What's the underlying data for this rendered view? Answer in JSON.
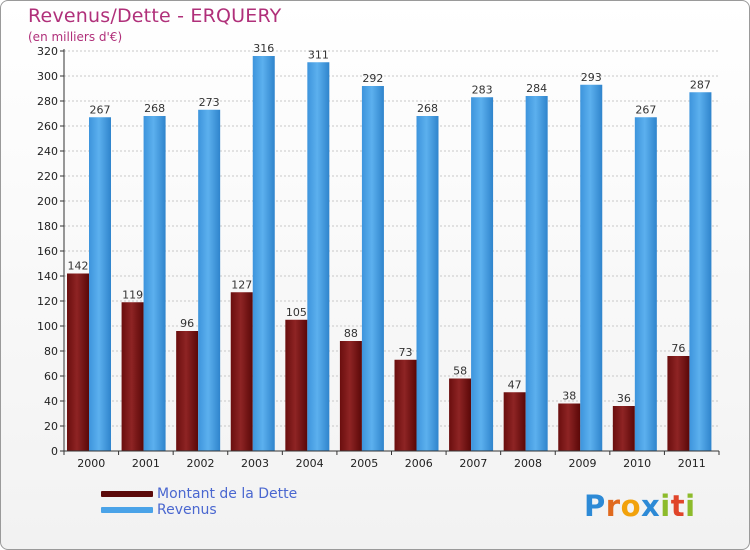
{
  "header": {
    "title": "Revenus/Dette - ERQUERY",
    "subtitle": "(en milliers d'€)"
  },
  "colors": {
    "debt": "#7a1212",
    "revenue": "#4aa3e8",
    "title": "#b0307a",
    "legend_text": "#4a67d0"
  },
  "legend": {
    "items": [
      {
        "label": "Montant de la Dette",
        "color": "#5c0a0a"
      },
      {
        "label": "Revenus",
        "color": "#4aa3e8"
      }
    ]
  },
  "logo": {
    "letters": [
      "P",
      "r",
      "o",
      "x",
      "i",
      "t",
      "i"
    ],
    "colors": [
      "#2d8ad6",
      "#e06a1f",
      "#f2a20c",
      "#2d8ad6",
      "#8dbb2b",
      "#e0452a",
      "#8dbb2b"
    ]
  },
  "chart_data": {
    "type": "bar",
    "categories": [
      "2000",
      "2001",
      "2002",
      "2003",
      "2004",
      "2005",
      "2006",
      "2007",
      "2008",
      "2009",
      "2010",
      "2011"
    ],
    "series": [
      {
        "name": "Montant de la Dette",
        "values": [
          142,
          119,
          96,
          127,
          105,
          88,
          73,
          58,
          47,
          38,
          36,
          76
        ]
      },
      {
        "name": "Revenus",
        "values": [
          267,
          268,
          273,
          316,
          311,
          292,
          268,
          283,
          284,
          293,
          267,
          287
        ]
      }
    ],
    "ylim": [
      0,
      320
    ],
    "yticks": [
      0,
      20,
      40,
      60,
      80,
      100,
      120,
      140,
      160,
      180,
      200,
      220,
      240,
      260,
      280,
      300,
      320
    ],
    "grid": true,
    "legend_position": "bottom-left"
  }
}
